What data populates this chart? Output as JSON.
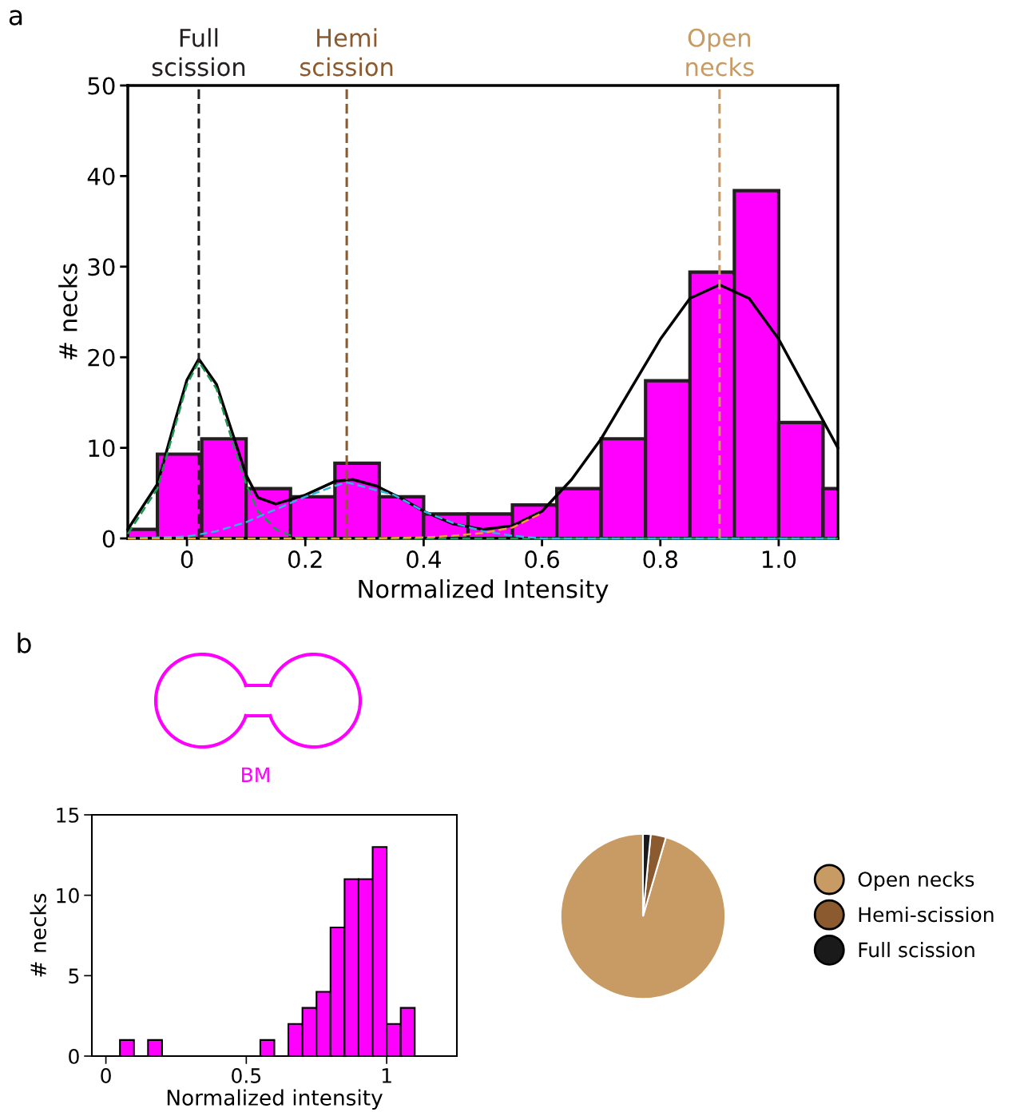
{
  "chart_data": [
    {
      "type": "histogram",
      "xlabel": "Normalized Intensity",
      "ylabel": "# necks",
      "color": "#ff00ff",
      "bins": [
        -0.125,
        -0.05,
        0.025,
        0.1,
        0.175,
        0.25,
        0.325,
        0.4,
        0.475,
        0.55,
        0.625,
        0.7,
        0.775,
        0.85,
        0.925,
        1.0,
        1.075,
        1.15
      ],
      "values": [
        1,
        9.3,
        11,
        5.5,
        4.6,
        8.3,
        4.6,
        2.7,
        2.7,
        3.7,
        5.5,
        11,
        17.4,
        29.4,
        38.4,
        12.8,
        5.5
      ],
      "series": [
        {
          "type": "line",
          "color": "#000000",
          "line_style": "solid",
          "x": [
            -0.1,
            -0.05,
            -0.02,
            0,
            0.02,
            0.05,
            0.08,
            0.1,
            0.12,
            0.15,
            0.2,
            0.25,
            0.28,
            0.32,
            0.36,
            0.4,
            0.45,
            0.5,
            0.55,
            0.6,
            0.65,
            0.7,
            0.75,
            0.8,
            0.85,
            0.9,
            0.95,
            1.0,
            1.05,
            1.1
          ],
          "values": [
            1,
            6,
            13,
            17.5,
            19.8,
            17,
            11,
            7,
            4.5,
            3.8,
            4.8,
            6.3,
            6.5,
            5.8,
            4.5,
            3,
            1.6,
            1,
            1.4,
            3,
            6.5,
            11,
            16.5,
            22,
            26.5,
            28,
            26.5,
            22,
            16,
            10
          ]
        },
        {
          "type": "line",
          "color": "#1a9850",
          "line_style": "dashed",
          "x": [
            -0.1,
            -0.05,
            0,
            0.02,
            0.05,
            0.08,
            0.1,
            0.12,
            0.15,
            0.18,
            0.2,
            1.1
          ],
          "values": [
            0.5,
            5.5,
            17,
            19.5,
            16.5,
            10,
            6,
            3,
            1,
            0.2,
            0,
            0
          ]
        },
        {
          "type": "line",
          "color": "#29b6e0",
          "line_style": "dashed",
          "x": [
            -0.1,
            0,
            0.05,
            0.1,
            0.15,
            0.2,
            0.25,
            0.27,
            0.35,
            0.4,
            0.45,
            0.5,
            0.55,
            0.6,
            1.1
          ],
          "values": [
            0,
            0.2,
            0.8,
            1.8,
            3.2,
            4.6,
            5.8,
            6.2,
            4.8,
            3,
            1.7,
            0.8,
            0.3,
            0,
            0
          ]
        },
        {
          "type": "line",
          "color": "#f0a030",
          "line_style": "dashed",
          "x": [
            -0.1,
            0.3,
            0.4,
            0.45,
            0.5,
            0.55,
            0.6
          ],
          "values": [
            0,
            0,
            0.1,
            0.3,
            0.6,
            1.2,
            2.8
          ]
        }
      ],
      "xlim": [
        -0.1,
        1.1
      ],
      "ylim": [
        0,
        50
      ],
      "xticks": [
        0,
        0.2,
        0.4,
        0.6,
        0.8,
        {
          "value": 1.0,
          "label": "1.0"
        }
      ],
      "yticks": [
        0,
        10,
        20,
        30,
        40,
        50
      ],
      "ref_lines": [
        {
          "axis": "x",
          "value": 0.02,
          "label": "Full\nscission",
          "color": "#231f20",
          "line_style": "dashed"
        },
        {
          "axis": "x",
          "value": 0.27,
          "label": "Hemi\nscission",
          "color": "#8b5a2f",
          "line_style": "dashed"
        },
        {
          "axis": "x",
          "value": 0.9,
          "label": "Open\nnecks",
          "color": "#c89b64",
          "line_style": "dashed"
        }
      ],
      "annotations": [
        "a"
      ],
      "grid": false
    },
    {
      "type": "histogram",
      "xlabel": "Normalized intensity",
      "ylabel": "# necks",
      "color": "#ff00ff",
      "bins": [
        0.05,
        0.1,
        0.15,
        0.2,
        0.25,
        0.3,
        0.35,
        0.4,
        0.45,
        0.5,
        0.55,
        0.6,
        0.65,
        0.7,
        0.75,
        0.8,
        0.85,
        0.9,
        0.95,
        1.0,
        1.05,
        1.1
      ],
      "values": [
        1,
        0,
        1,
        0,
        0,
        0,
        0,
        0,
        0,
        0,
        1,
        0,
        2,
        3,
        4,
        8,
        11,
        11,
        13,
        2,
        3
      ],
      "xlim": [
        -0.05,
        1.25
      ],
      "ylim": [
        0,
        15
      ],
      "xticks": [
        0,
        0.5,
        1
      ],
      "yticks": [
        0,
        5,
        10,
        15
      ],
      "annotations": [
        "b",
        "BM"
      ],
      "grid": false
    },
    {
      "type": "pie",
      "categories": [
        "Open necks",
        "Hemi-scission",
        "Full scission"
      ],
      "values": [
        95.5,
        3,
        1.5
      ],
      "colors": [
        "#c89b64",
        "#8b5a2f",
        "#1a1a1a"
      ],
      "legend": "right"
    }
  ]
}
